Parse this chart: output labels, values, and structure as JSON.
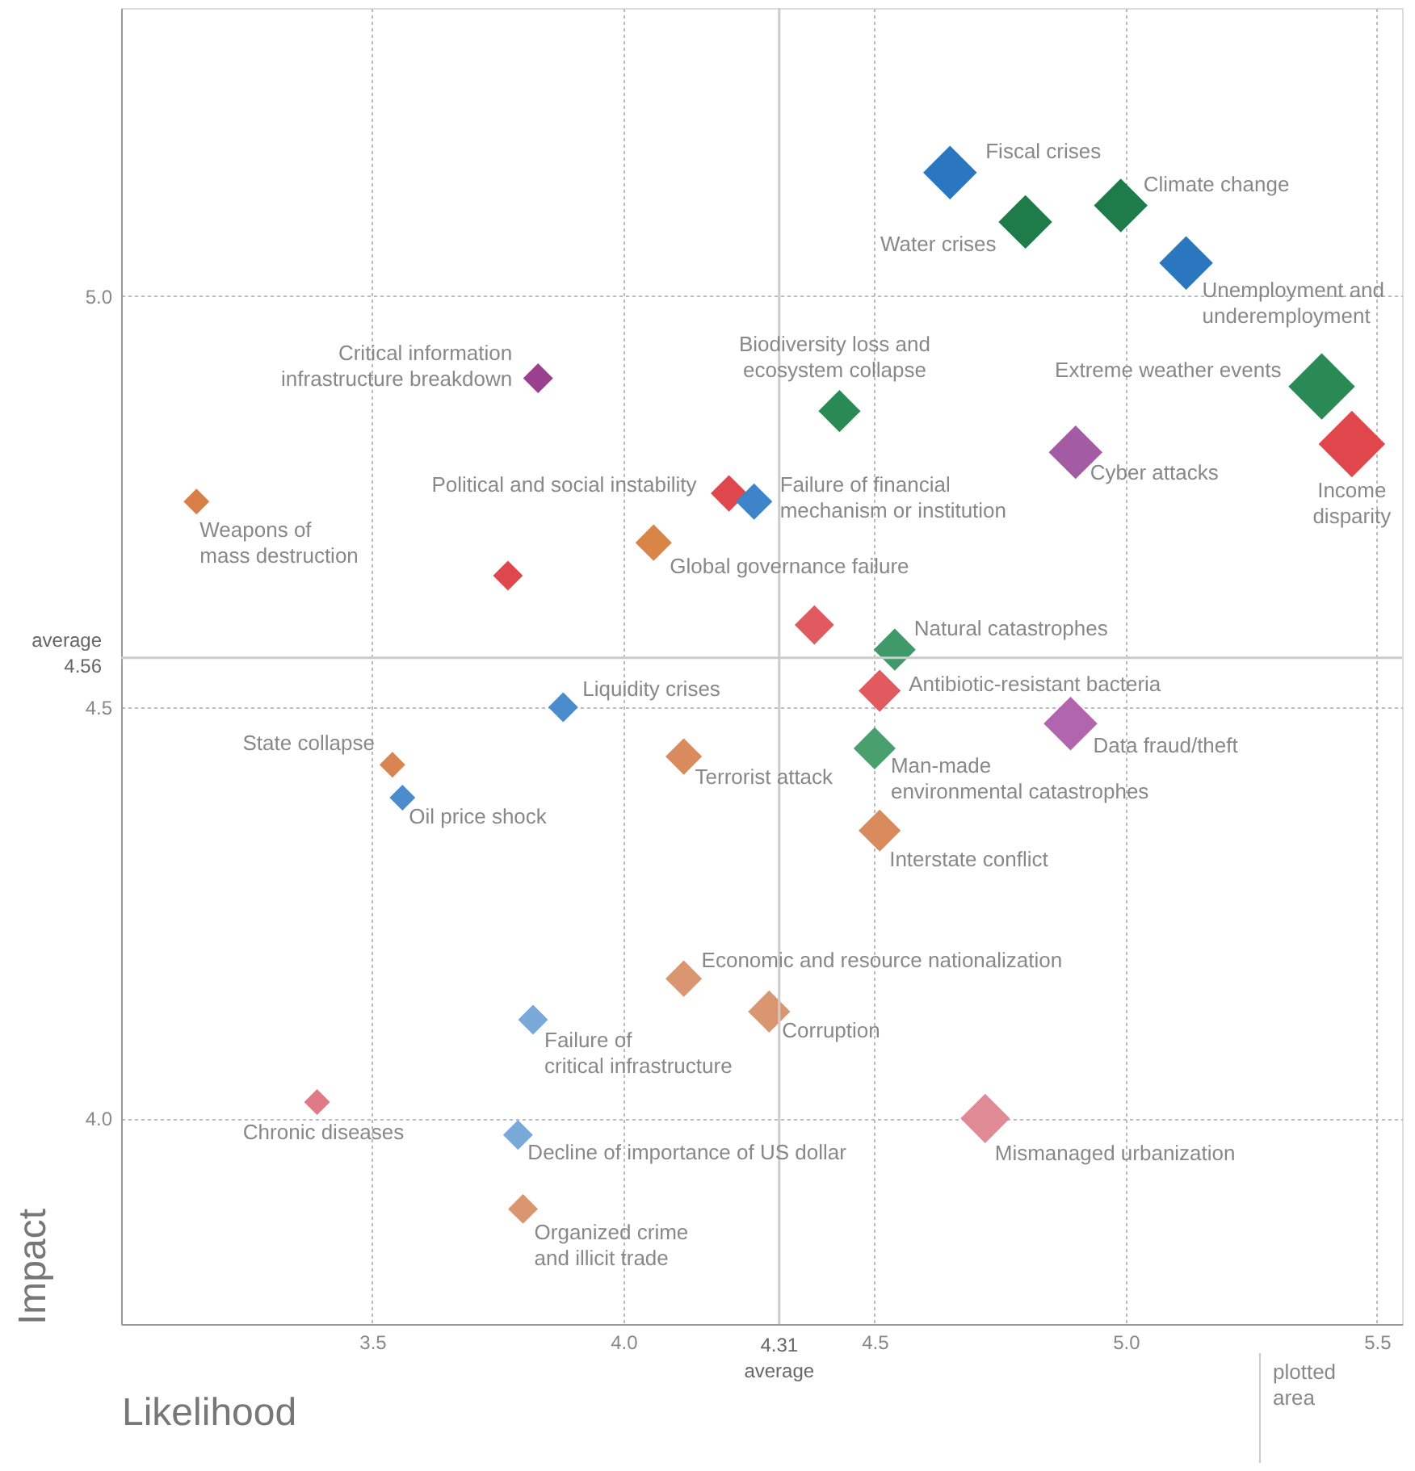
{
  "chart_data": {
    "type": "bubble",
    "xlabel": "Likelihood",
    "ylabel": "Impact",
    "marker": "diamond",
    "grid": true,
    "xlim": [
      3.0,
      5.55
    ],
    "ylim": [
      3.75,
      5.35
    ],
    "xticks": [
      {
        "value": 3.5,
        "label": "3.5"
      },
      {
        "value": 4.0,
        "label": "4.0"
      },
      {
        "value": 4.5,
        "label": "4.5"
      },
      {
        "value": 5.0,
        "label": "5.0"
      },
      {
        "value": 5.5,
        "label": "5.5"
      }
    ],
    "yticks": [
      {
        "value": 4.0,
        "label": "4.0"
      },
      {
        "value": 4.5,
        "label": "4.5"
      },
      {
        "value": 5.0,
        "label": "5.0"
      }
    ],
    "x": [
      4.65,
      4.8,
      4.99,
      5.12,
      5.39,
      5.45,
      4.9,
      4.43,
      3.83,
      4.21,
      4.26,
      3.15,
      4.06,
      4.54,
      4.51,
      3.88,
      4.89,
      4.12,
      4.5,
      3.54,
      3.56,
      4.51,
      4.12,
      4.29,
      3.82,
      3.39,
      3.79,
      4.72,
      3.8,
      3.77,
      4.38
    ],
    "values": [
      5.15,
      5.09,
      5.11,
      5.04,
      4.89,
      4.82,
      4.81,
      4.86,
      4.9,
      4.76,
      4.75,
      4.75,
      4.7,
      4.57,
      4.52,
      4.5,
      4.48,
      4.44,
      4.45,
      4.43,
      4.39,
      4.35,
      4.17,
      4.13,
      4.12,
      4.02,
      3.98,
      4.0,
      3.89,
      4.66,
      4.6
    ],
    "sizes": [
      0.65,
      0.65,
      0.65,
      0.65,
      1,
      1,
      0.65,
      0.4,
      0.2,
      0.3,
      0.3,
      0.15,
      0.3,
      0.4,
      0.4,
      0.2,
      0.65,
      0.3,
      0.4,
      0.15,
      0.15,
      0.4,
      0.3,
      0.4,
      0.2,
      0.15,
      0.2,
      0.55,
      0.2,
      0.2,
      0.35
    ],
    "colors": [
      "#2a76bf",
      "#1e7b4a",
      "#1e7b4a",
      "#2a76bf",
      "#2a8a55",
      "#e0474c",
      "#a35ca3",
      "#2a8a55",
      "#9b3f8f",
      "#e0474c",
      "#3d84c8",
      "#d97e47",
      "#d98548",
      "#3f9968",
      "#e05a60",
      "#4a8ccc",
      "#b066ae",
      "#d98b5e",
      "#4a9f6e",
      "#d98552",
      "#4a8ccc",
      "#d98b5e",
      "#d99670",
      "#d99670",
      "#78a9d9",
      "#e07a86",
      "#78a9d9",
      "#e08a95",
      "#d99670",
      "#e0474c",
      "#e05a60"
    ],
    "ref_lines": [
      {
        "axis": "y",
        "value": 4.56,
        "label": "average\n4.56",
        "color": "#cccccc"
      },
      {
        "axis": "x",
        "value": 4.31,
        "label": "4.31\naverage",
        "color": "#cccccc"
      }
    ],
    "annotations": [
      {
        "text": "Fiscal crises",
        "x": 4.65,
        "y": 5.15
      },
      {
        "text": "Water crises",
        "x": 4.8,
        "y": 5.09
      },
      {
        "text": "Climate change",
        "x": 4.99,
        "y": 5.11
      },
      {
        "text": "Unemployment and\nunderemployment",
        "x": 5.12,
        "y": 5.04
      },
      {
        "text": "Extreme weather events",
        "x": 5.39,
        "y": 4.89
      },
      {
        "text": "Income\ndisparity",
        "x": 5.45,
        "y": 4.82
      },
      {
        "text": "Cyber attacks",
        "x": 4.9,
        "y": 4.81
      },
      {
        "text": "Biodiversity loss and\necosystem collapse",
        "x": 4.43,
        "y": 4.86
      },
      {
        "text": "Critical information\ninfrastructure breakdown",
        "x": 3.83,
        "y": 4.9
      },
      {
        "text": "Political and social instability",
        "x": 4.21,
        "y": 4.76
      },
      {
        "text": "Failure of financial\nmechanism or institution",
        "x": 4.26,
        "y": 4.75
      },
      {
        "text": "Weapons of\nmass destruction",
        "x": 3.15,
        "y": 4.75
      },
      {
        "text": "Global governance failure",
        "x": 4.06,
        "y": 4.7
      },
      {
        "text": "Natural catastrophes",
        "x": 4.54,
        "y": 4.57
      },
      {
        "text": "Antibiotic-resistant bacteria",
        "x": 4.51,
        "y": 4.52
      },
      {
        "text": "Liquidity crises",
        "x": 3.88,
        "y": 4.5
      },
      {
        "text": "Data fraud/theft",
        "x": 4.89,
        "y": 4.48
      },
      {
        "text": "Terrorist attack",
        "x": 4.12,
        "y": 4.44
      },
      {
        "text": "Man-made\nenvironmental catastrophes",
        "x": 4.5,
        "y": 4.45
      },
      {
        "text": "State collapse",
        "x": 3.54,
        "y": 4.43
      },
      {
        "text": "Oil price shock",
        "x": 3.56,
        "y": 4.39
      },
      {
        "text": "Interstate conflict",
        "x": 4.51,
        "y": 4.35
      },
      {
        "text": "Economic and resource nationalization",
        "x": 4.12,
        "y": 4.17
      },
      {
        "text": "Corruption",
        "x": 4.29,
        "y": 4.13
      },
      {
        "text": "Failure of\ncritical infrastructure",
        "x": 3.82,
        "y": 4.12
      },
      {
        "text": "Chronic diseases",
        "x": 3.39,
        "y": 4.02
      },
      {
        "text": "Decline of importance of US dollar",
        "x": 3.79,
        "y": 3.98
      },
      {
        "text": "Mismanaged urbanization",
        "x": 4.72,
        "y": 4.0
      },
      {
        "text": "Organized crime\nand illicit trade",
        "x": 3.8,
        "y": 3.89
      },
      "plotted\narea"
    ]
  }
}
